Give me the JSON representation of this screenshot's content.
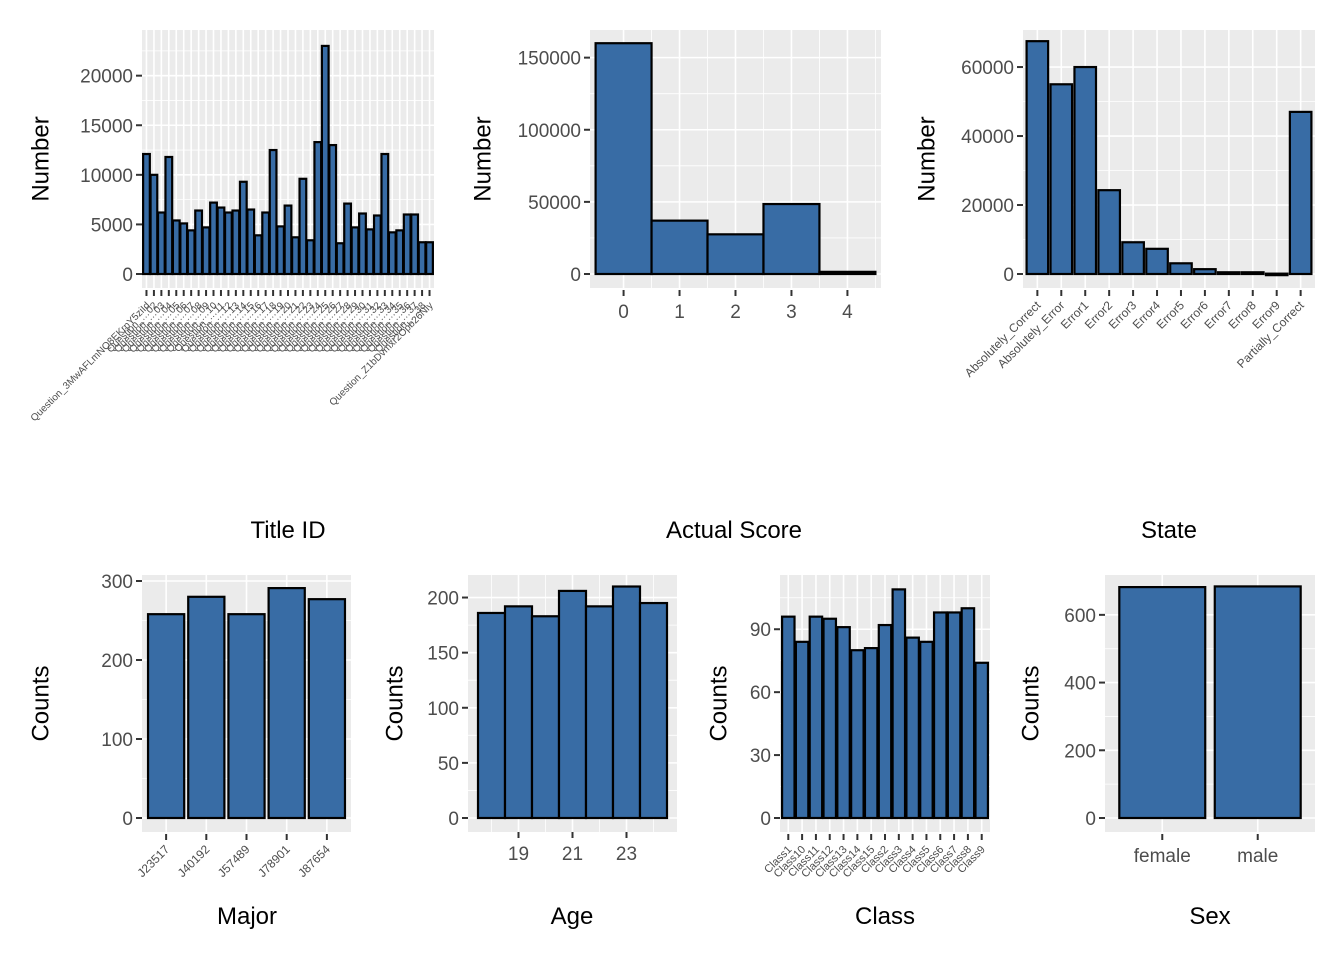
{
  "bar_color": "#386CA5",
  "panel_background": "#EBEBEB",
  "chart_data": [
    {
      "id": "title-id",
      "type": "bar",
      "xlabel": "Title ID",
      "ylabel": "Number",
      "ylim": [
        0,
        24000
      ],
      "yticks": [
        0,
        5000,
        10000,
        15000,
        20000
      ],
      "label_style": "rotated-small",
      "categories": [
        "Question_3MwAFLmNQ8EKrpY5ziId",
        "Question_…02",
        "Question_…03",
        "Question_…04",
        "Question_…05",
        "Question_…06",
        "Question_…07",
        "Question_…08",
        "Question_…09",
        "Question_…10",
        "Question_…11",
        "Question_…12",
        "Question_…13",
        "Question_…14",
        "Question_…15",
        "Question_…16",
        "Question_…17",
        "Question_…18",
        "Question_…19",
        "Question_…20",
        "Question_…21",
        "Question_…22",
        "Question_…23",
        "Question_…24",
        "Question_…25",
        "Question_…26",
        "Question_…27",
        "Question_…28",
        "Question_…29",
        "Question_…30",
        "Question_…31",
        "Question_…32",
        "Question_…33",
        "Question_…34",
        "Question_…35",
        "Question_…36",
        "Question_…37",
        "Question_…38",
        "Question_Z1bDvmxr2Opb26Nly"
      ],
      "values": [
        12100,
        10000,
        6200,
        11800,
        5400,
        5100,
        4400,
        6400,
        4700,
        7200,
        6700,
        6200,
        6400,
        9300,
        6500,
        3900,
        6200,
        12500,
        4800,
        6900,
        3700,
        9600,
        3400,
        13300,
        23000,
        13000,
        3100,
        7100,
        4700,
        6100,
        4500,
        5900,
        12100,
        4200,
        4400,
        6000,
        6000,
        3200,
        3200
      ]
    },
    {
      "id": "actual-score",
      "type": "bar",
      "xlabel": "Actual Score",
      "ylabel": "Number",
      "ylim": [
        0,
        165000
      ],
      "yticks": [
        0,
        50000,
        100000,
        150000
      ],
      "label_style": "horizontal",
      "categories": [
        "0",
        "1",
        "2",
        "3",
        "4"
      ],
      "values": [
        160000,
        37000,
        27500,
        48500,
        1500
      ]
    },
    {
      "id": "state",
      "type": "bar",
      "xlabel": "State",
      "ylabel": "Number",
      "ylim": [
        0,
        69000
      ],
      "yticks": [
        0,
        20000,
        40000,
        60000
      ],
      "label_style": "rotated",
      "categories": [
        "Absolutely_Correct",
        "Absolutely_Error",
        "Error1",
        "Error2",
        "Error3",
        "Error4",
        "Error5",
        "Error6",
        "Error7",
        "Error8",
        "Error9",
        "Partially_Correct"
      ],
      "values": [
        67500,
        55000,
        60000,
        24300,
        9200,
        7300,
        3100,
        1400,
        500,
        500,
        100,
        47000
      ]
    },
    {
      "id": "major",
      "type": "bar",
      "xlabel": "Major",
      "ylabel": "Counts",
      "ylim": [
        0,
        300
      ],
      "yticks": [
        0,
        100,
        200,
        300
      ],
      "label_style": "rotated",
      "categories": [
        "J23517",
        "J40192",
        "J57489",
        "J78901",
        "J87654"
      ],
      "values": [
        258,
        280,
        258,
        291,
        277
      ]
    },
    {
      "id": "age",
      "type": "bar",
      "xlabel": "Age",
      "ylabel": "Counts",
      "ylim": [
        0,
        215
      ],
      "yticks": [
        0,
        50,
        100,
        150,
        200
      ],
      "label_style": "numeric-axis",
      "x": [
        18,
        19,
        20,
        21,
        22,
        23,
        24
      ],
      "xticks": [
        19,
        21,
        23
      ],
      "categories": [
        "18",
        "19",
        "20",
        "21",
        "22",
        "23",
        "24"
      ],
      "values": [
        186,
        192,
        183,
        206,
        192,
        210,
        195
      ]
    },
    {
      "id": "class",
      "type": "bar",
      "xlabel": "Class",
      "ylabel": "Counts",
      "ylim": [
        0,
        113
      ],
      "yticks": [
        0,
        30,
        60,
        90
      ],
      "label_style": "rotated-small",
      "categories": [
        "Class1",
        "Class10",
        "Class11",
        "Class12",
        "Class13",
        "Class14",
        "Class15",
        "Class2",
        "Class3",
        "Class4",
        "Class5",
        "Class6",
        "Class7",
        "Class8",
        "Class9"
      ],
      "values": [
        96,
        84,
        96,
        95,
        91,
        80,
        81,
        92,
        109,
        86,
        84,
        98,
        98,
        100,
        74
      ]
    },
    {
      "id": "sex",
      "type": "bar",
      "xlabel": "Sex",
      "ylabel": "Counts",
      "ylim": [
        0,
        700
      ],
      "yticks": [
        0,
        200,
        400,
        600
      ],
      "label_style": "horizontal",
      "categories": [
        "female",
        "male"
      ],
      "values": [
        682,
        684
      ]
    }
  ]
}
